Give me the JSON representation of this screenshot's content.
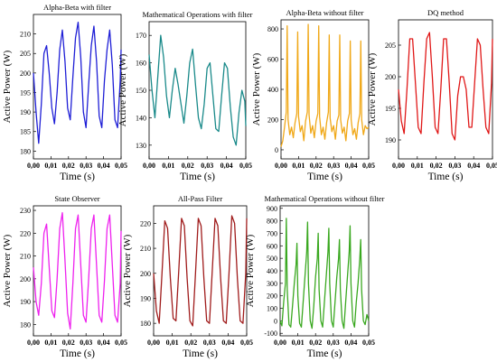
{
  "chart_data": [
    {
      "type": "line",
      "title": "Alpha-Beta with filter",
      "xlabel": "Time (s)",
      "ylabel": "Active Power (W)",
      "color": "#1f1fd6",
      "xlim": [
        0,
        0.05
      ],
      "ylim": [
        178,
        215
      ],
      "xticks": [
        "0,00",
        "0,01",
        "0,02",
        "0,03",
        "0,04",
        "0,05"
      ],
      "yticks": [
        "180",
        "185",
        "190",
        "195",
        "200",
        "205",
        "210"
      ],
      "series": [
        {
          "x": [
            0.0,
            0.0015,
            0.003,
            0.0045,
            0.006,
            0.0075,
            0.009,
            0.0105,
            0.012,
            0.0135,
            0.015,
            0.0165,
            0.018,
            0.0195,
            0.021,
            0.0225,
            0.024,
            0.0255,
            0.027,
            0.0285,
            0.03,
            0.0315,
            0.033,
            0.0345,
            0.036,
            0.0375,
            0.039,
            0.0405,
            0.042,
            0.0435,
            0.045,
            0.0465,
            0.048,
            0.0495,
            0.05
          ],
          "values": [
            200,
            190,
            182,
            192,
            205,
            207,
            200,
            191,
            187,
            195,
            206,
            211,
            203,
            191,
            188,
            199,
            209,
            213,
            204,
            190,
            186,
            197,
            207,
            212,
            203,
            189,
            186,
            198,
            206,
            211,
            202,
            188,
            186,
            198,
            206
          ]
        }
      ]
    },
    {
      "type": "line",
      "title": "Mathematical Operations with filter",
      "xlabel": "Time (s)",
      "ylabel": "Active Power (W)",
      "color": "#1a8a8a",
      "xlim": [
        0,
        0.05
      ],
      "ylim": [
        125,
        175
      ],
      "xticks": [
        "0,00",
        "0,01",
        "0,02",
        "0,03",
        "0,04",
        "0,05"
      ],
      "yticks": [
        "130",
        "140",
        "150",
        "160",
        "170"
      ],
      "series": [
        {
          "x": [
            0.0,
            0.0015,
            0.003,
            0.0045,
            0.006,
            0.0075,
            0.009,
            0.0105,
            0.012,
            0.0135,
            0.015,
            0.0165,
            0.018,
            0.0195,
            0.021,
            0.0225,
            0.024,
            0.0255,
            0.027,
            0.0285,
            0.03,
            0.0315,
            0.033,
            0.0345,
            0.036,
            0.0375,
            0.039,
            0.0405,
            0.042,
            0.0435,
            0.045,
            0.0465,
            0.048,
            0.0495,
            0.05
          ],
          "values": [
            163,
            150,
            140,
            155,
            170,
            162,
            148,
            140,
            150,
            158,
            152,
            145,
            138,
            148,
            160,
            165,
            152,
            140,
            136,
            145,
            158,
            160,
            148,
            136,
            135,
            148,
            160,
            158,
            144,
            133,
            130,
            142,
            150,
            146,
            137
          ]
        }
      ]
    },
    {
      "type": "line",
      "title": "Alpha-Beta without filter",
      "xlabel": "Time (s)",
      "ylabel": "Active Power (W)",
      "color": "#f0a818",
      "xlim": [
        0,
        0.05
      ],
      "ylim": [
        -60,
        860
      ],
      "xticks": [
        "0,00",
        "0,01",
        "0,02",
        "0,03",
        "0,04",
        "0,05"
      ],
      "yticks": [
        "0",
        "200",
        "400",
        "600",
        "800"
      ],
      "series": [
        {
          "x": [
            0.0,
            0.001,
            0.002,
            0.003,
            0.0035,
            0.004,
            0.005,
            0.006,
            0.007,
            0.008,
            0.009,
            0.0095,
            0.01,
            0.011,
            0.012,
            0.013,
            0.014,
            0.015,
            0.0155,
            0.016,
            0.017,
            0.018,
            0.019,
            0.02,
            0.021,
            0.0215,
            0.022,
            0.023,
            0.024,
            0.025,
            0.026,
            0.027,
            0.0275,
            0.028,
            0.029,
            0.03,
            0.031,
            0.032,
            0.033,
            0.0335,
            0.034,
            0.035,
            0.036,
            0.037,
            0.038,
            0.039,
            0.0395,
            0.04,
            0.041,
            0.042,
            0.043,
            0.044,
            0.045,
            0.0455,
            0.046,
            0.047,
            0.048,
            0.049,
            0.05
          ],
          "values": [
            20,
            60,
            150,
            250,
            820,
            200,
            100,
            150,
            80,
            180,
            240,
            780,
            220,
            120,
            160,
            60,
            190,
            250,
            830,
            230,
            110,
            160,
            80,
            190,
            240,
            820,
            220,
            100,
            150,
            70,
            180,
            250,
            760,
            210,
            120,
            160,
            70,
            190,
            230,
            760,
            200,
            110,
            150,
            60,
            190,
            240,
            720,
            200,
            100,
            140,
            70,
            180,
            240,
            720,
            200,
            100,
            160,
            140,
            150
          ]
        }
      ]
    },
    {
      "type": "line",
      "title": "DQ method",
      "xlabel": "Time (s)",
      "ylabel": "Active Power (W)",
      "color": "#e01818",
      "xlim": [
        0,
        0.05
      ],
      "ylim": [
        187,
        209
      ],
      "xticks": [
        "0,00",
        "0,01",
        "0,02",
        "0,03",
        "0,04",
        "0,05"
      ],
      "yticks": [
        "190",
        "195",
        "200",
        "205"
      ],
      "series": [
        {
          "x": [
            0.0,
            0.0015,
            0.003,
            0.0045,
            0.006,
            0.0075,
            0.009,
            0.0105,
            0.012,
            0.0135,
            0.015,
            0.0165,
            0.018,
            0.0195,
            0.021,
            0.0225,
            0.024,
            0.0255,
            0.027,
            0.0285,
            0.03,
            0.0315,
            0.033,
            0.0345,
            0.036,
            0.0375,
            0.039,
            0.0405,
            0.042,
            0.0435,
            0.045,
            0.0465,
            0.048,
            0.0495,
            0.05
          ],
          "values": [
            198,
            193,
            191,
            198,
            206,
            206,
            199,
            192,
            191,
            199,
            206,
            207,
            200,
            192,
            191,
            198,
            206,
            206,
            199,
            191,
            190,
            197,
            200,
            200,
            198,
            192,
            192,
            199,
            206,
            205,
            198,
            192,
            191,
            199,
            206
          ]
        }
      ]
    },
    {
      "type": "line",
      "title": "State Observer",
      "xlabel": "Time (s)",
      "ylabel": "Active Power (W)",
      "color": "#ee22ee",
      "xlim": [
        0,
        0.05
      ],
      "ylim": [
        175,
        232
      ],
      "xticks": [
        "0,00",
        "0,01",
        "0,02",
        "0,03",
        "0,04",
        "0,05"
      ],
      "yticks": [
        "180",
        "190",
        "200",
        "210",
        "220",
        "230"
      ],
      "series": [
        {
          "x": [
            0.0,
            0.0015,
            0.003,
            0.0045,
            0.006,
            0.0075,
            0.009,
            0.0105,
            0.012,
            0.0135,
            0.015,
            0.0165,
            0.018,
            0.0195,
            0.021,
            0.0225,
            0.024,
            0.0255,
            0.027,
            0.0285,
            0.03,
            0.0315,
            0.033,
            0.0345,
            0.036,
            0.0375,
            0.039,
            0.0405,
            0.042,
            0.0435,
            0.045,
            0.0465,
            0.048,
            0.0495,
            0.05
          ],
          "values": [
            205,
            190,
            184,
            198,
            220,
            224,
            205,
            186,
            183,
            200,
            222,
            229,
            208,
            185,
            178,
            198,
            222,
            228,
            206,
            184,
            181,
            200,
            222,
            228,
            206,
            184,
            181,
            199,
            222,
            228,
            206,
            184,
            181,
            198,
            221
          ]
        }
      ]
    },
    {
      "type": "line",
      "title": "All-Pass Filter",
      "xlabel": "Time (s)",
      "ylabel": "Active Power (W)",
      "color": "#a01c1c",
      "xlim": [
        0,
        0.05
      ],
      "ylim": [
        175,
        227
      ],
      "xticks": [
        "0,00",
        "0,01",
        "0,02",
        "0,03",
        "0,04",
        "0,05"
      ],
      "yticks": [
        "180",
        "190",
        "200",
        "210",
        "220"
      ],
      "series": [
        {
          "x": [
            0.0,
            0.0015,
            0.003,
            0.0045,
            0.006,
            0.0075,
            0.009,
            0.0105,
            0.012,
            0.0135,
            0.015,
            0.0165,
            0.018,
            0.0195,
            0.021,
            0.0225,
            0.024,
            0.0255,
            0.027,
            0.0285,
            0.03,
            0.0315,
            0.033,
            0.0345,
            0.036,
            0.0375,
            0.039,
            0.0405,
            0.042,
            0.0435,
            0.045,
            0.0465,
            0.048,
            0.0495,
            0.05
          ],
          "values": [
            200,
            185,
            180,
            200,
            221,
            218,
            198,
            182,
            181,
            201,
            222,
            219,
            198,
            181,
            179,
            200,
            222,
            219,
            198,
            181,
            180,
            201,
            222,
            219,
            198,
            181,
            180,
            200,
            223,
            220,
            198,
            181,
            180,
            200,
            222
          ]
        }
      ]
    },
    {
      "type": "line",
      "title": "Mathematical Operations without filter",
      "xlabel": "Time (s)",
      "ylabel": "Active Power (W)",
      "color": "#3aa820",
      "xlim": [
        0,
        0.05
      ],
      "ylim": [
        -120,
        920
      ],
      "xticks": [
        "0,00",
        "0,01",
        "0,02",
        "0,03",
        "0,04",
        "0,05"
      ],
      "yticks": [
        "-100",
        "0",
        "100",
        "200",
        "300",
        "400",
        "500",
        "600",
        "700",
        "800",
        "900"
      ],
      "series": [
        {
          "x": [
            0.0,
            0.001,
            0.002,
            0.003,
            0.0035,
            0.004,
            0.005,
            0.006,
            0.007,
            0.008,
            0.009,
            0.0095,
            0.01,
            0.011,
            0.012,
            0.013,
            0.014,
            0.015,
            0.0155,
            0.016,
            0.017,
            0.018,
            0.019,
            0.02,
            0.021,
            0.0215,
            0.022,
            0.023,
            0.024,
            0.025,
            0.026,
            0.027,
            0.0275,
            0.028,
            0.029,
            0.03,
            0.031,
            0.032,
            0.033,
            0.0335,
            0.034,
            0.035,
            0.036,
            0.037,
            0.038,
            0.039,
            0.0395,
            0.04,
            0.041,
            0.042,
            0.043,
            0.044,
            0.045,
            0.0455,
            0.046,
            0.047,
            0.048,
            0.049,
            0.05
          ],
          "values": [
            0,
            -40,
            150,
            300,
            820,
            250,
            -30,
            -50,
            120,
            300,
            450,
            620,
            200,
            -20,
            -50,
            150,
            350,
            550,
            790,
            300,
            0,
            -60,
            120,
            350,
            500,
            700,
            250,
            0,
            -50,
            150,
            350,
            550,
            740,
            300,
            0,
            -50,
            150,
            350,
            500,
            650,
            250,
            0,
            -60,
            150,
            350,
            550,
            760,
            300,
            0,
            -50,
            150,
            300,
            500,
            650,
            250,
            0,
            -30,
            50,
            0
          ]
        }
      ]
    }
  ]
}
